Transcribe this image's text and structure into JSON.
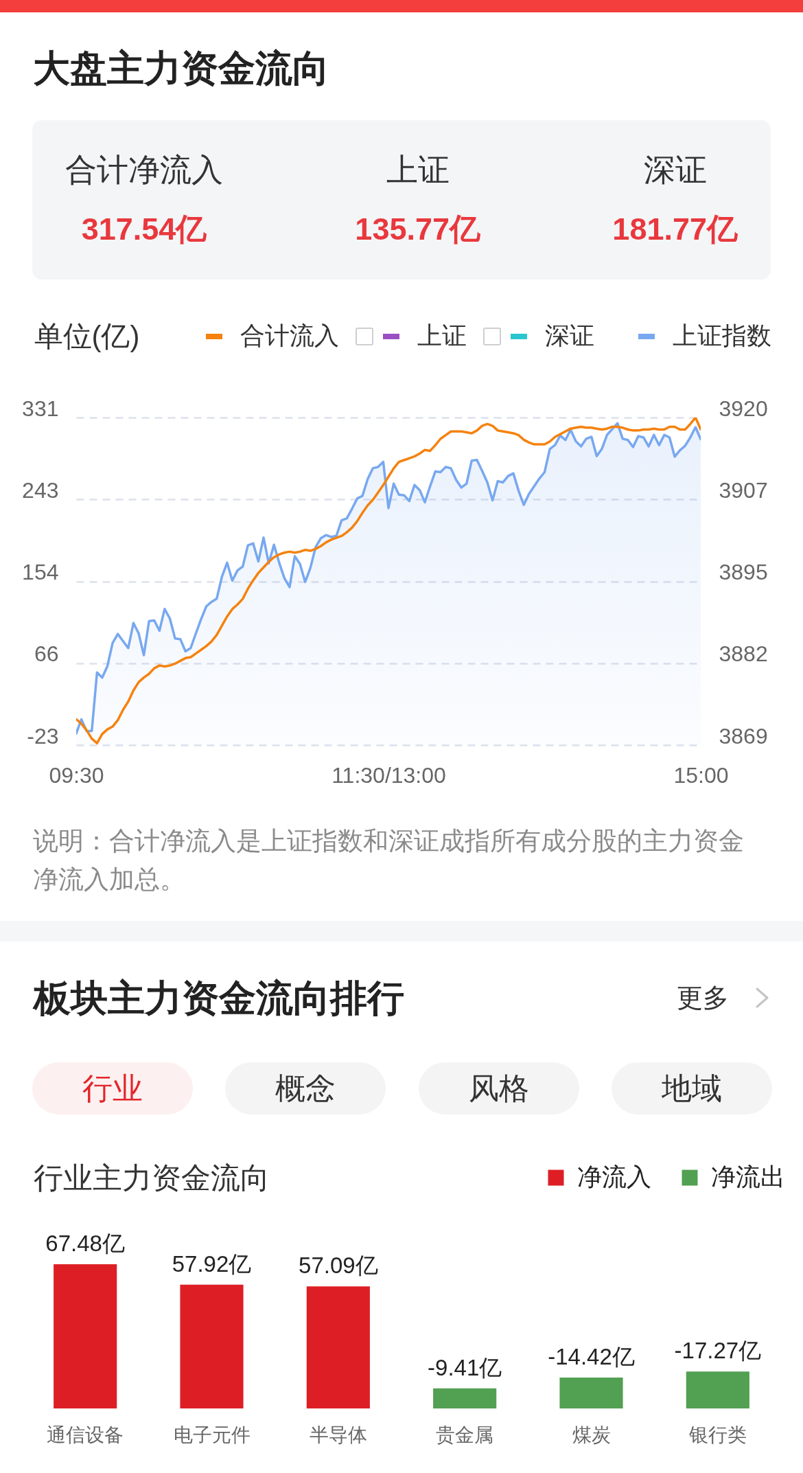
{
  "chart_data": [
    {
      "type": "other",
      "title": "大盘主力资金流向",
      "annotations": [
        "合计净流入",
        "317.54亿",
        "上证",
        "135.77亿",
        "深证",
        "181.77亿"
      ]
    },
    {
      "type": "line",
      "ylabel": "单位(亿)",
      "categories": [
        "09:30",
        null,
        null,
        null,
        null,
        null,
        null,
        null,
        null,
        null,
        null,
        null,
        null,
        null,
        null,
        null,
        null,
        null,
        null,
        null,
        null,
        null,
        null,
        null,
        null,
        null,
        null,
        null,
        null,
        null,
        null,
        null,
        null,
        null,
        null,
        null,
        null,
        null,
        null,
        null,
        null,
        null,
        null,
        null,
        null,
        null,
        null,
        null,
        null,
        null,
        null,
        null,
        null,
        null,
        null,
        null,
        null,
        null,
        null,
        null,
        "11:30/13:00",
        null,
        null,
        null,
        null,
        null,
        null,
        null,
        null,
        null,
        null,
        null,
        null,
        null,
        null,
        null,
        null,
        null,
        null,
        null,
        null,
        null,
        null,
        null,
        null,
        null,
        null,
        null,
        null,
        null,
        null,
        null,
        null,
        null,
        null,
        null,
        null,
        null,
        null,
        null,
        null,
        null,
        null,
        null,
        null,
        null,
        null,
        null,
        null,
        null,
        null,
        null,
        null,
        null,
        null,
        null,
        null,
        null,
        null,
        null,
        "15:00"
      ],
      "ylim": [
        -23,
        331
      ],
      "yticks": [
        -23,
        {
          "value": 65.5,
          "label": "66"
        },
        154,
        {
          "value": 242.5,
          "label": "243"
        },
        331
      ],
      "y2lim": [
        3869,
        3920
      ],
      "y2ticks": [
        3869,
        {
          "value": 3881.75,
          "label": "3882"
        },
        {
          "value": 3894.5,
          "label": "3895"
        },
        {
          "value": 3907.25,
          "label": "3907"
        },
        3920
      ],
      "grid": "y",
      "legend": "top right",
      "series": [
        {
          "name": "合计流入",
          "color": "#f5820f",
          "values": [
            5,
            0,
            -7,
            -16,
            -21,
            -11,
            -6,
            -3,
            4,
            15,
            24,
            36,
            45,
            50,
            54,
            60,
            63,
            62,
            63,
            65,
            68,
            71,
            72,
            76,
            80,
            84,
            89,
            96,
            106,
            116,
            124,
            129,
            135,
            146,
            155,
            163,
            169,
            175,
            180,
            183,
            185,
            186,
            185,
            186,
            188,
            187,
            189,
            192,
            196,
            199,
            201,
            203,
            207,
            212,
            219,
            228,
            236,
            242,
            250,
            258,
            267,
            276,
            283,
            285,
            287,
            289,
            292,
            296,
            295,
            301,
            308,
            312,
            316,
            316,
            316,
            315,
            314,
            317,
            322,
            324,
            322,
            317,
            316,
            315,
            314,
            312,
            307,
            304,
            302,
            302,
            302,
            305,
            310,
            313,
            316,
            319,
            320,
            321,
            320,
            320,
            319,
            318,
            319,
            321,
            321,
            320,
            318,
            317,
            317,
            318,
            318,
            319,
            318,
            318,
            321,
            321,
            318,
            318,
            324,
            331,
            318
          ]
        },
        {
          "name": "上证",
          "color": "#9b4fc2",
          "values": [
            null,
            null,
            null,
            null,
            null,
            null,
            null,
            null,
            null,
            null,
            null,
            null,
            null,
            null,
            null,
            null,
            null,
            null,
            null,
            null,
            null,
            null,
            null,
            null,
            null,
            null,
            null,
            null,
            null,
            null,
            null,
            null,
            null,
            null,
            null,
            null,
            null,
            null,
            null,
            null,
            null,
            null,
            null,
            null,
            null,
            null,
            null,
            null,
            null,
            null,
            null,
            null,
            null,
            null,
            null,
            null,
            null,
            null,
            null,
            null,
            null,
            null,
            null,
            null,
            null,
            null,
            null,
            null,
            null,
            null,
            null,
            null,
            null,
            null,
            null,
            null,
            null,
            null,
            null,
            null,
            null,
            null,
            null,
            null,
            null,
            null,
            null,
            null,
            null,
            null,
            null,
            null,
            null,
            null,
            null,
            null,
            null,
            null,
            null,
            null,
            null,
            null,
            null,
            null,
            null,
            null,
            null,
            null,
            null,
            null,
            null,
            null,
            null,
            null,
            null,
            null,
            null,
            null,
            null,
            null,
            null
          ]
        },
        {
          "name": "深证",
          "color": "#2ac6cf",
          "values": [
            null,
            null,
            null,
            null,
            null,
            null,
            null,
            null,
            null,
            null,
            null,
            null,
            null,
            null,
            null,
            null,
            null,
            null,
            null,
            null,
            null,
            null,
            null,
            null,
            null,
            null,
            null,
            null,
            null,
            null,
            null,
            null,
            null,
            null,
            null,
            null,
            null,
            null,
            null,
            null,
            null,
            null,
            null,
            null,
            null,
            null,
            null,
            null,
            null,
            null,
            null,
            null,
            null,
            null,
            null,
            null,
            null,
            null,
            null,
            null,
            null,
            null,
            null,
            null,
            null,
            null,
            null,
            null,
            null,
            null,
            null,
            null,
            null,
            null,
            null,
            null,
            null,
            null,
            null,
            null,
            null,
            null,
            null,
            null,
            null,
            null,
            null,
            null,
            null,
            null,
            null,
            null,
            null,
            null,
            null,
            null,
            null,
            null,
            null,
            null,
            null,
            null,
            null,
            null,
            null,
            null,
            null,
            null,
            null,
            null,
            null,
            null,
            null,
            null,
            null,
            null,
            null,
            null,
            null,
            null,
            null
          ]
        },
        {
          "name": "上证指数",
          "type": "area",
          "axis": "y2",
          "color": "#78a8f0",
          "values": [
            3870.8,
            3873.0,
            3871.2,
            3871.2,
            3880.3,
            3879.5,
            3881.3,
            3884.9,
            3886.3,
            3885.2,
            3884.1,
            3888.0,
            3886.4,
            3883.0,
            3888.3,
            3888.4,
            3886.8,
            3890.2,
            3888.7,
            3885.6,
            3885.5,
            3883.6,
            3884.1,
            3886.4,
            3888.6,
            3890.6,
            3891.3,
            3891.8,
            3895.2,
            3897.4,
            3894.6,
            3896.2,
            3896.8,
            3900.1,
            3900.4,
            3897.6,
            3901.3,
            3897.3,
            3900.2,
            3897.4,
            3895.0,
            3893.6,
            3898.4,
            3897.2,
            3894.4,
            3896.6,
            3899.8,
            3901.2,
            3901.7,
            3901.4,
            3901.6,
            3904.0,
            3904.3,
            3905.8,
            3907.4,
            3907.8,
            3910.4,
            3912.1,
            3912.3,
            3913.1,
            3905.9,
            3909.7,
            3908.0,
            3907.9,
            3907.0,
            3909.5,
            3908.7,
            3906.8,
            3909.3,
            3911.6,
            3911.5,
            3912.3,
            3912.1,
            3910.3,
            3909.1,
            3909.7,
            3913.3,
            3913.4,
            3911.7,
            3909.9,
            3907.1,
            3910.1,
            3909.9,
            3910.9,
            3911.3,
            3908.6,
            3906.4,
            3908.1,
            3909.3,
            3910.5,
            3911.5,
            3915.1,
            3915.7,
            3917.2,
            3916.5,
            3918.1,
            3916.3,
            3915.5,
            3916.7,
            3917.0,
            3914.0,
            3915.1,
            3917.3,
            3918.2,
            3919.1,
            3916.7,
            3916.5,
            3915.4,
            3917.1,
            3916.9,
            3915.5,
            3917.3,
            3915.7,
            3917.3,
            3916.9,
            3913.9,
            3914.9,
            3915.6,
            3916.9,
            3918.5,
            3916.6
          ]
        }
      ],
      "annotations": [
        "说明：合计净流入是上证指数和深证成指所有成分股的主力资金净流入加总。"
      ]
    },
    {
      "type": "other",
      "title": "板块主力资金流向排行",
      "annotations": [
        "更多",
        "行业",
        "概念",
        "风格",
        "地域"
      ]
    },
    {
      "type": "bar",
      "title": "行业主力资金流向",
      "categories": [
        "通信设备",
        "电子元件",
        "半导体",
        "贵金属",
        "煤炭",
        "银行类"
      ],
      "stacked": true,
      "legend": "top right",
      "series": [
        {
          "name": "净流入",
          "color": "#dd1f25",
          "values": [
            67.48,
            57.92,
            57.09,
            null,
            null,
            null
          ],
          "value_labels": [
            "67.48亿",
            "57.92亿",
            "57.09亿",
            null,
            null,
            null
          ]
        },
        {
          "name": "净流出",
          "color": "#52a052",
          "values": [
            null,
            null,
            null,
            9.41,
            14.42,
            17.27
          ]
        }
      ],
      "annotations": [
        {
          "text": "-9.41亿",
          "x": "贵金属",
          "y": 9.41
        },
        {
          "text": "-14.42亿",
          "x": "煤炭",
          "y": 14.42
        },
        {
          "text": "-17.27亿",
          "x": "银行类",
          "y": 17.27
        }
      ]
    }
  ]
}
